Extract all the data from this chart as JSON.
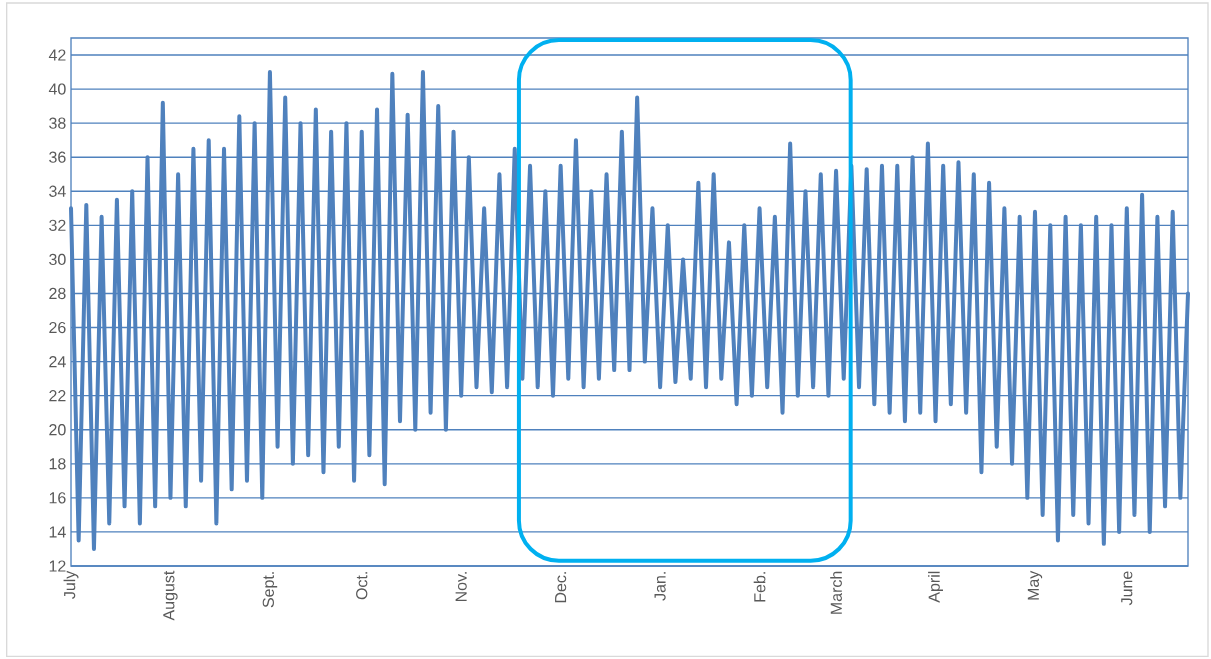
{
  "chart_data": {
    "type": "line",
    "grid": "y",
    "ylim": [
      12,
      43
    ],
    "yticks": [
      12,
      14,
      16,
      18,
      20,
      22,
      24,
      26,
      28,
      30,
      32,
      34,
      36,
      38,
      40,
      42
    ],
    "categories": [
      "July",
      null,
      null,
      null,
      null,
      null,
      null,
      null,
      null,
      null,
      null,
      null,
      null,
      "August",
      null,
      null,
      null,
      null,
      null,
      null,
      null,
      null,
      null,
      null,
      null,
      null,
      "Sept.",
      null,
      null,
      null,
      null,
      null,
      null,
      null,
      null,
      null,
      null,
      null,
      "Oct.",
      null,
      null,
      null,
      null,
      null,
      null,
      null,
      null,
      null,
      null,
      null,
      null,
      "Nov.",
      null,
      null,
      null,
      null,
      null,
      null,
      null,
      null,
      null,
      null,
      null,
      null,
      "Dec.",
      null,
      null,
      null,
      null,
      null,
      null,
      null,
      null,
      null,
      null,
      null,
      null,
      "Jan.",
      null,
      null,
      null,
      null,
      null,
      null,
      null,
      null,
      null,
      null,
      null,
      null,
      "Feb.",
      null,
      null,
      null,
      null,
      null,
      null,
      null,
      null,
      null,
      "March",
      null,
      null,
      null,
      null,
      null,
      null,
      null,
      null,
      null,
      null,
      null,
      null,
      "April",
      null,
      null,
      null,
      null,
      null,
      null,
      null,
      null,
      null,
      null,
      null,
      null,
      "May",
      null,
      null,
      null,
      null,
      null,
      null,
      null,
      null,
      null,
      null,
      null,
      "June",
      null,
      null,
      null,
      null,
      null,
      null,
      null,
      null
    ],
    "series": [
      {
        "color": "#4f81bd",
        "values": [
          33,
          13.5,
          33.2,
          13,
          32.5,
          14.5,
          33.5,
          15.5,
          34,
          14.5,
          36,
          15.5,
          39.2,
          16,
          35,
          15.5,
          36.5,
          17,
          37,
          14.5,
          36.5,
          16.5,
          38.4,
          17,
          38,
          16,
          41,
          19,
          39.5,
          18,
          38,
          18.5,
          38.8,
          17.5,
          37.5,
          19,
          38,
          17,
          37.5,
          18.5,
          38.8,
          16.8,
          40.9,
          20.5,
          38.5,
          20,
          41,
          21,
          39,
          20,
          37.5,
          22,
          36,
          22.5,
          33,
          22.2,
          35,
          22.5,
          36.5,
          23,
          35.5,
          22.5,
          34,
          22,
          35.5,
          23,
          37,
          22.5,
          34,
          23,
          35,
          23.5,
          37.5,
          23.5,
          39.5,
          24,
          33,
          22.5,
          32,
          22.8,
          30,
          23,
          34.5,
          22.5,
          35,
          23,
          31,
          21.5,
          32,
          22,
          33,
          22.5,
          32.5,
          21,
          36.8,
          22,
          34,
          22.5,
          35,
          22,
          35.2,
          23,
          35.5,
          22.5,
          35.3,
          21.5,
          35.5,
          21,
          35.5,
          20.5,
          36,
          21,
          36.8,
          20.5,
          35.5,
          21.5,
          35.7,
          21,
          35,
          17.5,
          34.5,
          19,
          33,
          18,
          32.5,
          16,
          32.8,
          15,
          32,
          13.5,
          32.5,
          15,
          32,
          14.5,
          32.5,
          13.3,
          32,
          14,
          33,
          15,
          33.8,
          14,
          32.5,
          15.5,
          32.8,
          16,
          28
        ]
      }
    ]
  }
}
